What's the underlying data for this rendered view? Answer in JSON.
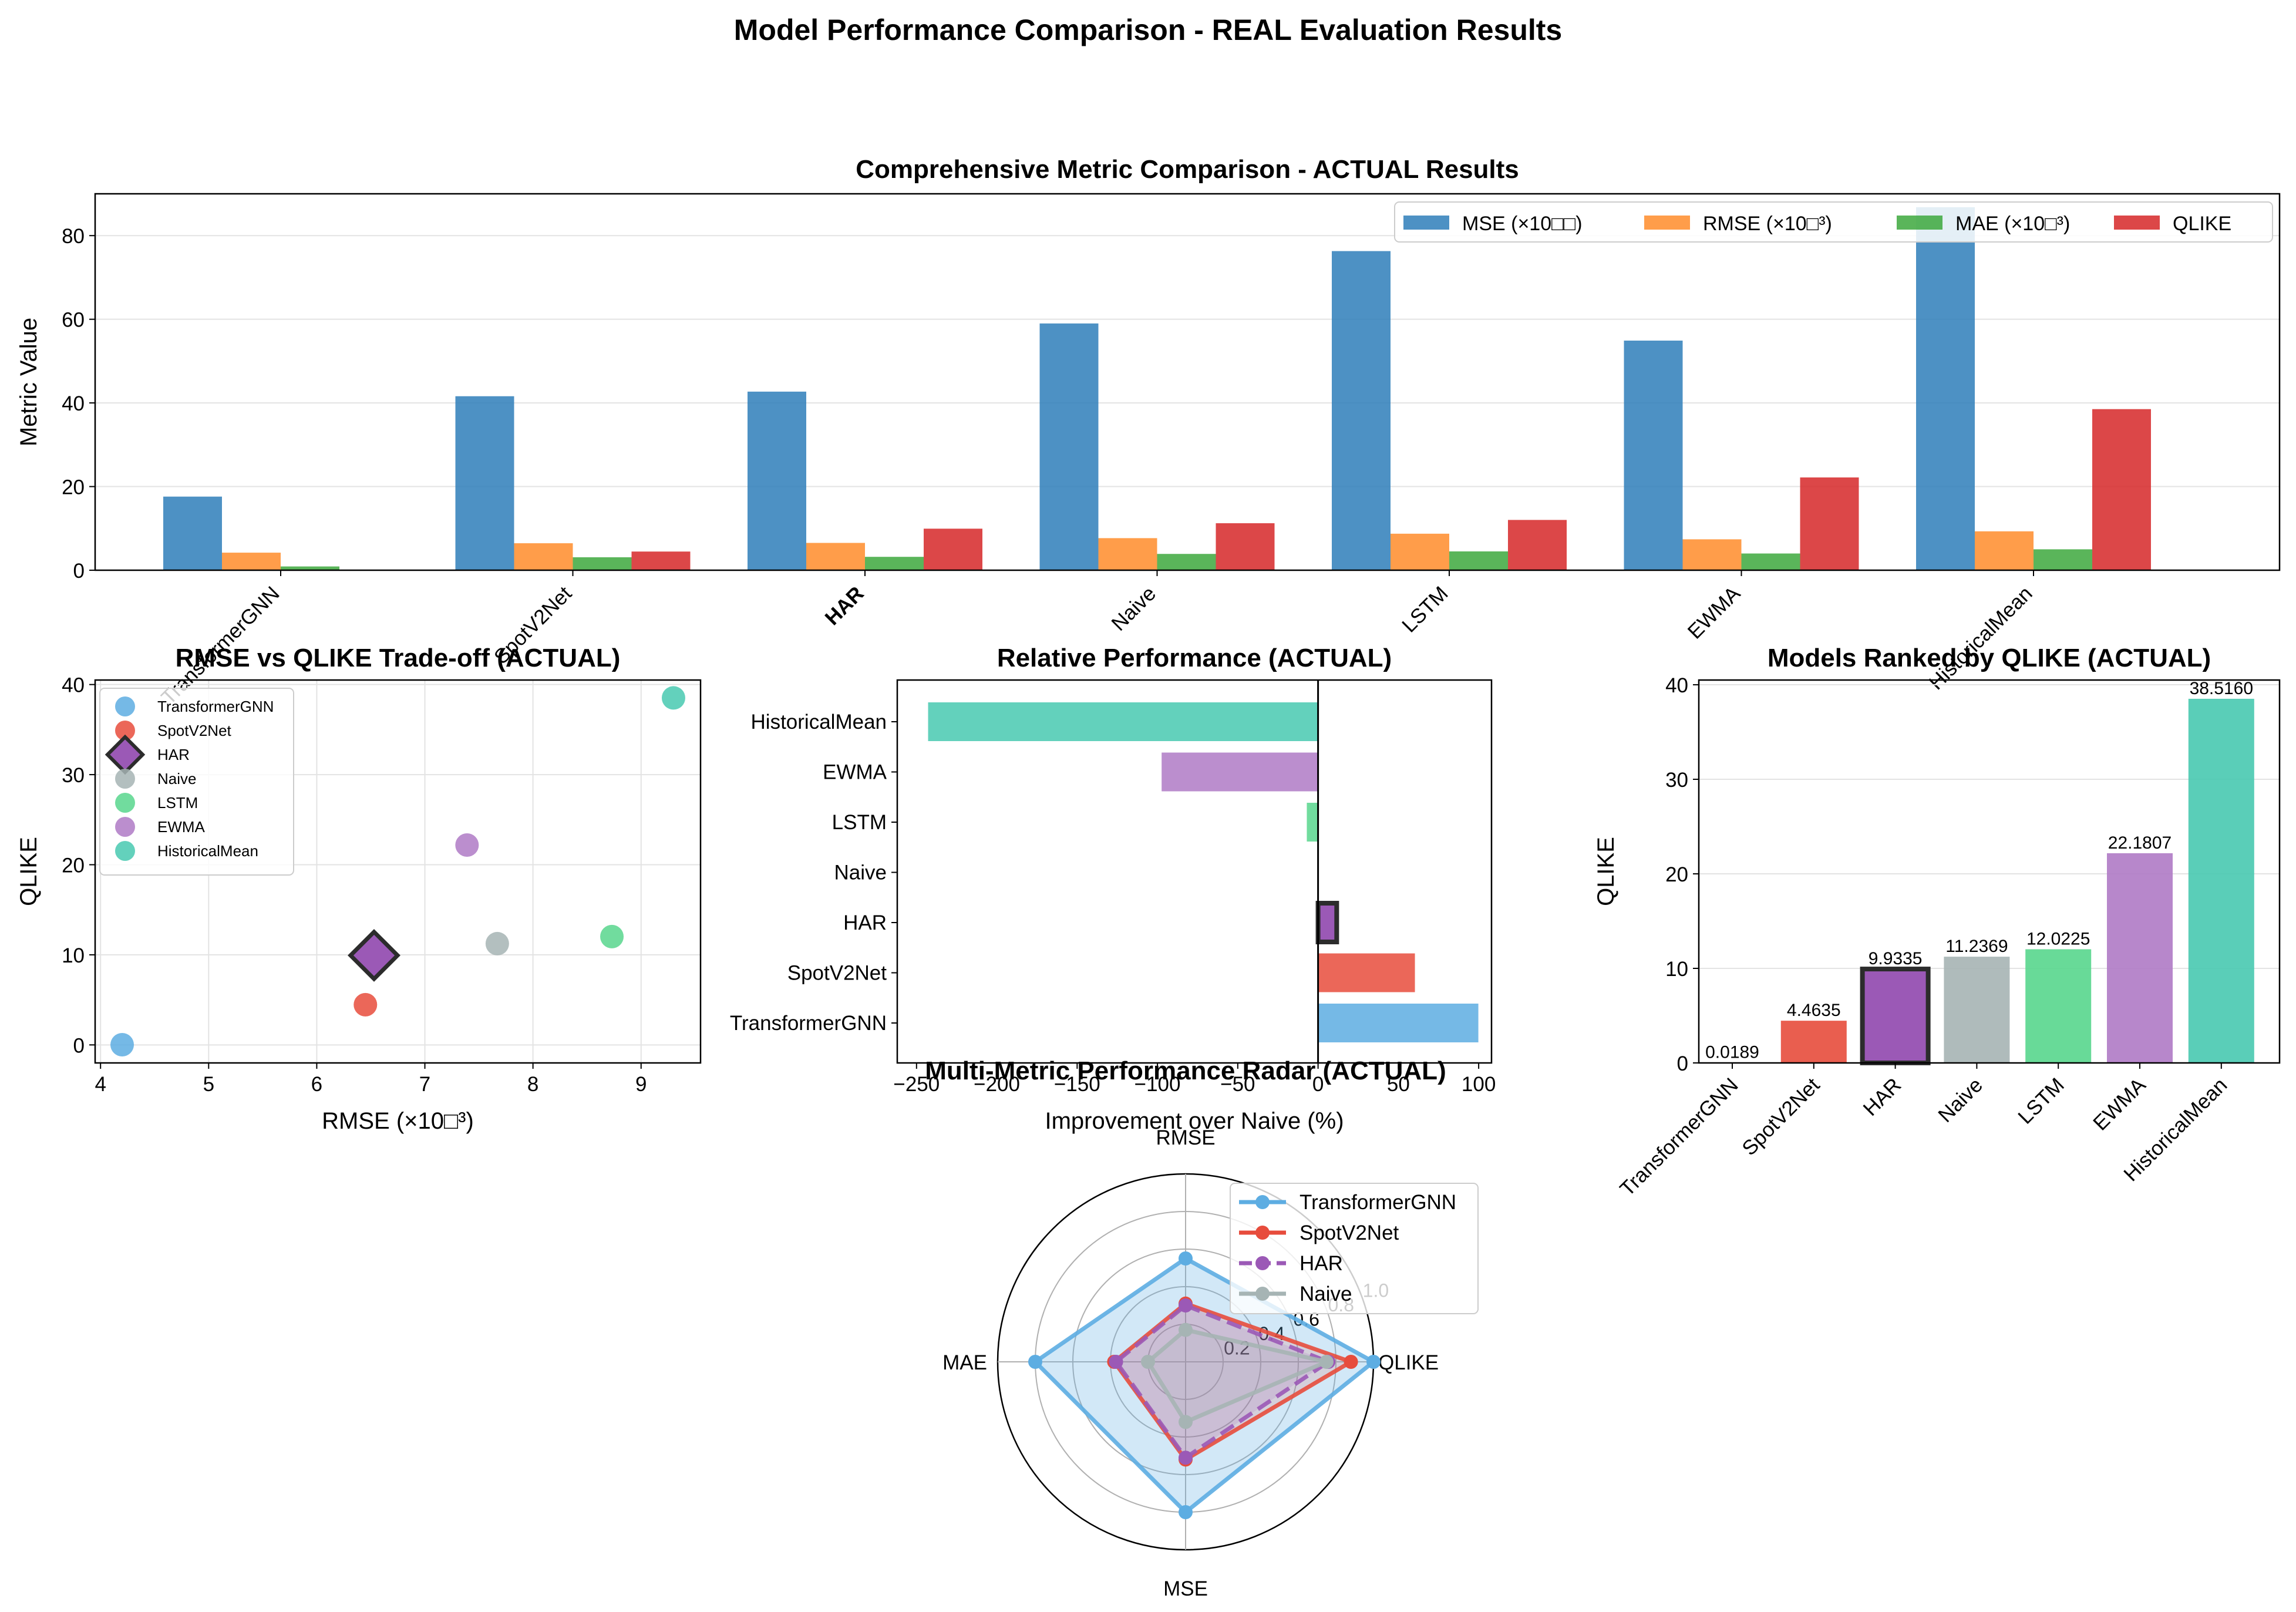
{
  "figure": {
    "suptitle": "Model Performance Comparison - REAL Evaluation Results"
  },
  "colors": {
    "TransformerGNN": "#5DADE2",
    "SpotV2Net": "#E74C3C",
    "HAR": "#9B59B6",
    "Naive": "#A6B4B4",
    "LSTM": "#58D68D",
    "EWMA": "#AF7AC5",
    "HistoricalMean": "#48C9B0",
    "MSE": "#2E7EBA",
    "RMSE": "#FF8C2A",
    "MAE": "#3DA83D",
    "QLIKE": "#D62728"
  },
  "chart_data": [
    {
      "id": "metric_comparison",
      "type": "bar",
      "title": "Comprehensive Metric Comparison - ACTUAL Results",
      "xlabel": "",
      "ylabel": "Metric Value",
      "ylim": [
        0,
        90
      ],
      "yticks": [
        0,
        20,
        40,
        60,
        80
      ],
      "grid": true,
      "legend": "top-right",
      "highlight_category": "HAR",
      "categories": [
        "TransformerGNN",
        "SpotV2Net",
        "HAR",
        "Naive",
        "LSTM",
        "EWMA",
        "HistoricalMean"
      ],
      "series": [
        {
          "name": "MSE (×10□□)",
          "key": "MSE",
          "values": [
            17.6,
            41.6,
            42.7,
            59.0,
            76.3,
            54.9,
            86.8
          ]
        },
        {
          "name": "RMSE (×10□³)",
          "key": "RMSE",
          "values": [
            4.2,
            6.45,
            6.53,
            7.67,
            8.73,
            7.39,
            9.3
          ]
        },
        {
          "name": "MAE (×10□³)",
          "key": "MAE",
          "values": [
            0.9,
            3.1,
            3.2,
            3.9,
            4.5,
            4.0,
            5.0
          ]
        },
        {
          "name": "QLIKE",
          "key": "QLIKE",
          "values": [
            0.0189,
            4.4635,
            9.9335,
            11.2369,
            12.0225,
            22.1807,
            38.516
          ]
        }
      ]
    },
    {
      "id": "tradeoff",
      "type": "scatter",
      "title": "RMSE vs QLIKE Trade-off (ACTUAL)",
      "xlabel": "RMSE (×10□³)",
      "ylabel": "QLIKE",
      "xlim": [
        3.95,
        9.55
      ],
      "xticks": [
        4,
        5,
        6,
        7,
        8,
        9
      ],
      "ylim": [
        -2,
        40.5
      ],
      "yticks": [
        0,
        10,
        20,
        30,
        40
      ],
      "grid": true,
      "legend": "upper-left",
      "highlight": "HAR",
      "points": [
        {
          "name": "TransformerGNN",
          "x": 4.2,
          "y": 0.0189
        },
        {
          "name": "SpotV2Net",
          "x": 6.45,
          "y": 4.4635
        },
        {
          "name": "HAR",
          "x": 6.53,
          "y": 9.9335
        },
        {
          "name": "Naive",
          "x": 7.67,
          "y": 11.2369
        },
        {
          "name": "LSTM",
          "x": 8.73,
          "y": 12.0225
        },
        {
          "name": "EWMA",
          "x": 7.39,
          "y": 22.1807
        },
        {
          "name": "HistoricalMean",
          "x": 9.3,
          "y": 38.516
        }
      ]
    },
    {
      "id": "relative",
      "type": "bar",
      "orientation": "horizontal",
      "title": "Relative Performance (ACTUAL)",
      "xlabel": "Improvement over Naive (%)",
      "ylabel": "",
      "xlim": [
        -262,
        108
      ],
      "xticks": [
        -250,
        -200,
        -150,
        -100,
        -50,
        0,
        50,
        100
      ],
      "highlight": "HAR",
      "categories": [
        "TransformerGNN",
        "SpotV2Net",
        "HAR",
        "Naive",
        "LSTM",
        "EWMA",
        "HistoricalMean"
      ],
      "values": [
        99.8,
        60.3,
        11.6,
        0,
        -7.0,
        -97.4,
        -242.8
      ]
    },
    {
      "id": "ranked",
      "type": "bar",
      "title": "Models Ranked by QLIKE (ACTUAL)",
      "xlabel": "",
      "ylabel": "QLIKE",
      "ylim": [
        0,
        40.5
      ],
      "yticks": [
        0,
        10,
        20,
        30,
        40
      ],
      "grid": true,
      "highlight": "HAR",
      "categories": [
        "TransformerGNN",
        "SpotV2Net",
        "HAR",
        "Naive",
        "LSTM",
        "EWMA",
        "HistoricalMean"
      ],
      "values": [
        0.0189,
        4.4635,
        9.9335,
        11.2369,
        12.0225,
        22.1807,
        38.516
      ],
      "labels": [
        "0.0189",
        "4.4635",
        "9.9335",
        "11.2369",
        "12.0225",
        "22.1807",
        "38.5160"
      ]
    },
    {
      "id": "radar",
      "type": "radar",
      "title": "Multi-Metric Performance Radar (ACTUAL)",
      "axes": [
        "RMSE",
        "QLIKE",
        "MSE",
        "MAE"
      ],
      "rlim": [
        0,
        1.0
      ],
      "rticks": [
        "0.2",
        "0.4",
        "0.6",
        "0.8",
        "1.0"
      ],
      "legend": "upper-right",
      "series": [
        {
          "name": "TransformerGNN",
          "values": [
            0.55,
            1.0,
            0.8,
            0.8
          ]
        },
        {
          "name": "SpotV2Net",
          "values": [
            0.31,
            0.88,
            0.52,
            0.38
          ]
        },
        {
          "name": "HAR",
          "values": [
            0.3,
            0.76,
            0.51,
            0.37
          ]
        },
        {
          "name": "Naive",
          "values": [
            0.17,
            0.75,
            0.32,
            0.2
          ]
        }
      ]
    }
  ]
}
